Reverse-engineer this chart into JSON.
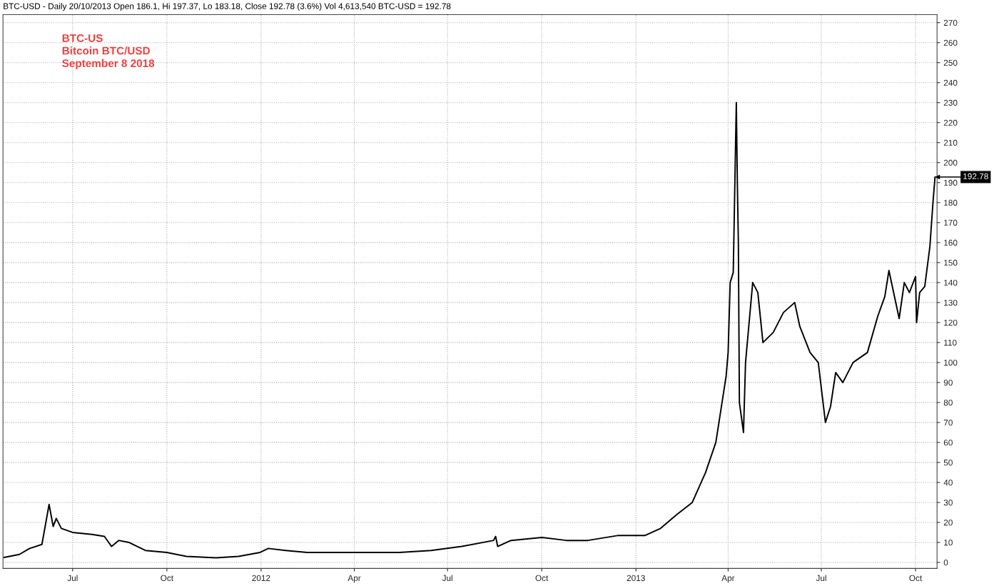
{
  "chart_data": {
    "type": "line",
    "title": "BTC-USD - Daily 20/10/2013 Open 186.1, Hi 197.37, Lo 183.18, Close 192.78 (3.6%) Vol 4,613,540 BTC-USD = 192.78",
    "annotations": [
      "BTC-US\nBitcoin BTC/USD\nSeptember 8 2018",
      "192.78"
    ],
    "x": [
      "2011-04-25",
      "2011-05-10",
      "2011-05-20",
      "2011-06-01",
      "2011-06-08",
      "2011-06-12",
      "2011-06-15",
      "2011-06-20",
      "2011-07-01",
      "2011-07-20",
      "2011-08-01",
      "2011-08-08",
      "2011-08-15",
      "2011-08-25",
      "2011-09-10",
      "2011-10-01",
      "2011-10-20",
      "2011-11-18",
      "2011-12-10",
      "2011-12-31",
      "2012-01-08",
      "2012-01-25",
      "2012-02-15",
      "2012-03-15",
      "2012-04-15",
      "2012-05-15",
      "2012-06-15",
      "2012-07-15",
      "2012-08-15",
      "2012-08-17",
      "2012-08-19",
      "2012-09-01",
      "2012-10-01",
      "2012-10-25",
      "2012-11-15",
      "2012-12-15",
      "2013-01-10",
      "2013-01-25",
      "2013-02-10",
      "2013-02-25",
      "2013-03-10",
      "2013-03-20",
      "2013-03-30",
      "2013-04-01",
      "2013-04-03",
      "2013-04-06",
      "2013-04-09",
      "2013-04-10",
      "2013-04-11",
      "2013-04-12",
      "2013-04-16",
      "2013-04-18",
      "2013-04-25",
      "2013-04-30",
      "2013-05-05",
      "2013-05-15",
      "2013-05-25",
      "2013-06-05",
      "2013-06-10",
      "2013-06-20",
      "2013-06-28",
      "2013-07-05",
      "2013-07-10",
      "2013-07-15",
      "2013-07-22",
      "2013-08-01",
      "2013-08-15",
      "2013-08-25",
      "2013-09-01",
      "2013-09-05",
      "2013-09-15",
      "2013-09-20",
      "2013-09-25",
      "2013-10-01",
      "2013-10-02",
      "2013-10-05",
      "2013-10-10",
      "2013-10-15",
      "2013-10-18",
      "2013-10-20"
    ],
    "series": [
      {
        "color": "#000000",
        "values": [
          2.5,
          4,
          7,
          9,
          29,
          18,
          22,
          17,
          15,
          14,
          13,
          8,
          11,
          10,
          6,
          5,
          3,
          2.3,
          3,
          5,
          7,
          6,
          5,
          5,
          5,
          5,
          6,
          8,
          11,
          13,
          8,
          11,
          12.5,
          11,
          11,
          13.5,
          13.5,
          17,
          24,
          30,
          45,
          60,
          93,
          105,
          140,
          145,
          230,
          190,
          160,
          80,
          65,
          100,
          140,
          135,
          110,
          115,
          125,
          130,
          118,
          105,
          100,
          70,
          78,
          95,
          90,
          100,
          105,
          123,
          133,
          146,
          122,
          140,
          135,
          143,
          120,
          135,
          138,
          158,
          180,
          192.78
        ]
      }
    ],
    "xlim": [
      "2011-04-24",
      "2013-10-22"
    ],
    "xticks": [
      {
        "value": "2011-07-01",
        "label": "Jul"
      },
      {
        "value": "2011-10-01",
        "label": "Oct"
      },
      {
        "value": "2012-01-01",
        "label": "2012"
      },
      {
        "value": "2012-04-01",
        "label": "Apr"
      },
      {
        "value": "2012-07-01",
        "label": "Jul"
      },
      {
        "value": "2012-10-01",
        "label": "Oct"
      },
      {
        "value": "2013-01-01",
        "label": "2013"
      },
      {
        "value": "2013-04-01",
        "label": "Apr"
      },
      {
        "value": "2013-07-01",
        "label": "Jul"
      },
      {
        "value": "2013-10-01",
        "label": "Oct"
      }
    ],
    "ylim": [
      -3,
      274
    ],
    "yticks": [
      0,
      10,
      20,
      30,
      40,
      50,
      60,
      70,
      80,
      90,
      100,
      110,
      120,
      130,
      140,
      150,
      160,
      170,
      180,
      190,
      200,
      210,
      220,
      230,
      240,
      250,
      260,
      270
    ],
    "grid": true,
    "marker": "none",
    "line_style": "solid"
  }
}
